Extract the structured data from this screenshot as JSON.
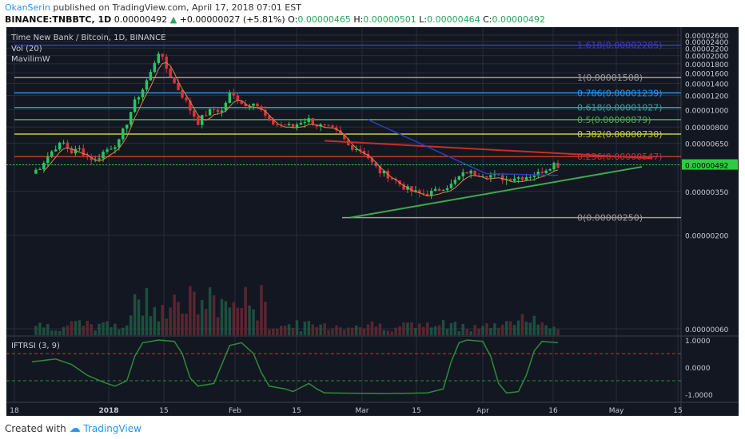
{
  "header": {
    "author": "OkanSerin",
    "published": "published on TradingView.com, April 17, 2018 07:01 EST",
    "symbol": "BINANCE:TNBBTC, 1D",
    "last": "0.00000492",
    "change": "+0.00000027 (+5.81%)",
    "o_label": "O:",
    "o": "0.00000465",
    "h_label": "H:",
    "h": "0.00000501",
    "l_label": "L:",
    "l": "0.00000464",
    "c_label": "C:",
    "c": "0.00000492"
  },
  "legend": {
    "title": "Time New Bank / Bitcoin, 1D, BINANCE",
    "vol": "Vol (20)",
    "indicator": "MavilimW",
    "iftrsi": "IFTRSI (3, 9)"
  },
  "footer": {
    "created": "Created with",
    "brand": "TradingView"
  },
  "colors": {
    "bg": "#131722",
    "up": "#26c95d",
    "down": "#e0303a",
    "grid": "#2a2e39"
  },
  "chart_data": {
    "type": "candlestick",
    "y_scale": "log",
    "price_ticks": [
      "0.00002600",
      "0.00002400",
      "0.00002200",
      "0.00002000",
      "0.00001800",
      "0.00001600",
      "0.00001400",
      "0.00001200",
      "0.00001000",
      "0.00000800",
      "0.00000650",
      "0.00000492",
      "0.00000350",
      "0.00000200",
      "0.00000060"
    ],
    "osc_ticks": [
      "1.0000",
      "0.0000",
      "-1.0000"
    ],
    "x_ticks": [
      "18",
      "2018",
      "15",
      "Feb",
      "15",
      "Mar",
      "15",
      "Apr",
      "16",
      "May",
      "15"
    ],
    "fib_levels": [
      {
        "label": "1.618(0.00002285)",
        "value": 2.285e-05,
        "color": "#3a3ad0"
      },
      {
        "label": "1(0.00001508)",
        "value": 1.508e-05,
        "color": "#9e9e9e"
      },
      {
        "label": "0.786(0.00001239)",
        "value": 1.239e-05,
        "color": "#2196f3"
      },
      {
        "label": "0.618(0.00001027)",
        "value": 1.027e-05,
        "color": "#26a69a"
      },
      {
        "label": "0.5(0.00000879)",
        "value": 8.79e-06,
        "color": "#4caf50"
      },
      {
        "label": "0.382(0.00000730)",
        "value": 7.3e-06,
        "color": "#c8d13b"
      },
      {
        "label": "0.236(0.00000547)",
        "value": 5.47e-06,
        "color": "#c0392b"
      },
      {
        "label": "0(0.00000250)",
        "value": 2.5e-06,
        "color": "#9e9e9e"
      }
    ],
    "price_anchors": [
      [
        0,
        4.4e-06
      ],
      [
        2,
        4.8e-06
      ],
      [
        4,
        5.5e-06
      ],
      [
        6,
        6.2e-06
      ],
      [
        8,
        6.5e-06
      ],
      [
        10,
        5.8e-06
      ],
      [
        12,
        6e-06
      ],
      [
        14,
        5.5e-06
      ],
      [
        16,
        5.2e-06
      ],
      [
        18,
        5.8e-06
      ],
      [
        20,
        6.2e-06
      ],
      [
        22,
        6.6e-06
      ],
      [
        24,
        8.5e-06
      ],
      [
        26,
        1.1e-05
      ],
      [
        28,
        1.3e-05
      ],
      [
        30,
        1.6e-05
      ],
      [
        32,
        2.1e-05
      ],
      [
        33,
        1.9e-05
      ],
      [
        34,
        1.7e-05
      ],
      [
        36,
        1.4e-05
      ],
      [
        38,
        1.2e-05
      ],
      [
        40,
        1e-05
      ],
      [
        42,
        8.5e-06
      ],
      [
        44,
        9.5e-06
      ],
      [
        46,
        1e-05
      ],
      [
        48,
        9.8e-06
      ],
      [
        50,
        1.22e-05
      ],
      [
        52,
        1.15e-05
      ],
      [
        54,
        1.05e-05
      ],
      [
        56,
        1.12e-05
      ],
      [
        58,
        9.8e-06
      ],
      [
        60,
        8.5e-06
      ],
      [
        62,
        8.3e-06
      ],
      [
        64,
        8.2e-06
      ],
      [
        66,
        8e-06
      ],
      [
        68,
        8.6e-06
      ],
      [
        70,
        8.8e-06
      ],
      [
        72,
        8.2e-06
      ],
      [
        74,
        8e-06
      ],
      [
        76,
        7.7e-06
      ],
      [
        78,
        7.2e-06
      ],
      [
        80,
        6.3e-06
      ],
      [
        82,
        6.1e-06
      ],
      [
        84,
        5.8e-06
      ],
      [
        86,
        5e-06
      ],
      [
        88,
        4.5e-06
      ],
      [
        90,
        4.3e-06
      ],
      [
        92,
        4e-06
      ],
      [
        94,
        3.7e-06
      ],
      [
        96,
        3.5e-06
      ],
      [
        98,
        3.4e-06
      ],
      [
        100,
        3.4e-06
      ],
      [
        102,
        3.5e-06
      ],
      [
        104,
        3.7e-06
      ],
      [
        106,
        3.8e-06
      ],
      [
        108,
        4.2e-06
      ],
      [
        110,
        4.5e-06
      ],
      [
        112,
        4.4e-06
      ],
      [
        114,
        4.4e-06
      ],
      [
        116,
        4.3e-06
      ],
      [
        118,
        4.2e-06
      ],
      [
        120,
        4.1e-06
      ],
      [
        122,
        4.2e-06
      ],
      [
        124,
        4.2e-06
      ],
      [
        126,
        4.3e-06
      ],
      [
        128,
        4.4e-06
      ],
      [
        130,
        4.7e-06
      ],
      [
        132,
        5e-06
      ],
      [
        133,
        4.9e-06
      ]
    ],
    "iftrsi_anchors": [
      [
        0,
        0.2
      ],
      [
        6,
        0.3
      ],
      [
        10,
        0.1
      ],
      [
        14,
        -0.3
      ],
      [
        18,
        -0.55
      ],
      [
        21,
        -0.7
      ],
      [
        24,
        -0.5
      ],
      [
        26,
        0.4
      ],
      [
        28,
        0.9
      ],
      [
        32,
        1.0
      ],
      [
        36,
        0.95
      ],
      [
        38,
        0.5
      ],
      [
        40,
        -0.4
      ],
      [
        42,
        -0.7
      ],
      [
        46,
        -0.6
      ],
      [
        48,
        0.1
      ],
      [
        50,
        0.8
      ],
      [
        53,
        0.9
      ],
      [
        56,
        0.5
      ],
      [
        58,
        -0.2
      ],
      [
        60,
        -0.7
      ],
      [
        64,
        -0.8
      ],
      [
        66,
        -0.9
      ],
      [
        68,
        -0.75
      ],
      [
        70,
        -0.6
      ],
      [
        72,
        -0.8
      ],
      [
        74,
        -0.95
      ],
      [
        90,
        -0.97
      ],
      [
        100,
        -0.95
      ],
      [
        104,
        -0.8
      ],
      [
        106,
        0.2
      ],
      [
        108,
        0.9
      ],
      [
        110,
        1.0
      ],
      [
        114,
        0.95
      ],
      [
        116,
        0.4
      ],
      [
        118,
        -0.6
      ],
      [
        120,
        -0.95
      ],
      [
        123,
        -0.9
      ],
      [
        125,
        -0.3
      ],
      [
        127,
        0.6
      ],
      [
        129,
        0.95
      ],
      [
        133,
        0.9
      ]
    ]
  }
}
